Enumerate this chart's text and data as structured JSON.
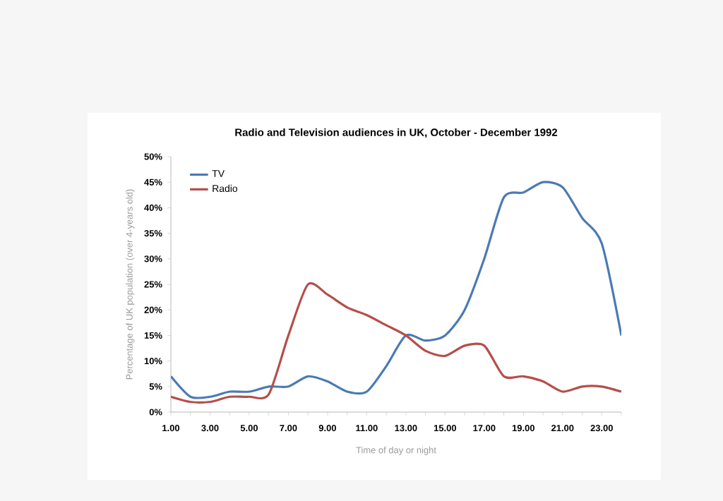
{
  "chart_data": {
    "type": "line",
    "title": "Radio and Television audiences in UK, October - December 1992",
    "xlabel": "Time of day or night",
    "ylabel": "Percentage of UK population (over 4-years old)",
    "categories": [
      "1.00",
      null,
      "3.00",
      null,
      "5.00",
      null,
      "7.00",
      null,
      "9.00",
      null,
      "11.00",
      null,
      "13.00",
      null,
      "15.00",
      null,
      "17.00",
      null,
      "19.00",
      null,
      "21.00",
      null,
      "23.00",
      null
    ],
    "series": [
      {
        "name": "TV",
        "color": "#4a7ab5",
        "values": [
          7,
          3,
          3,
          4,
          4,
          5,
          5,
          7,
          6,
          4,
          4,
          9,
          15,
          14,
          15,
          20,
          30,
          42,
          43,
          45,
          44,
          38,
          33,
          15
        ]
      },
      {
        "name": "Radio",
        "color": "#b54e4a",
        "values": [
          3,
          2,
          2,
          3,
          3,
          3.5,
          15,
          25,
          23,
          20.5,
          19,
          17,
          15,
          12,
          11,
          13,
          13,
          7,
          7,
          6,
          4,
          5,
          5,
          4
        ]
      }
    ],
    "ylim": [
      0,
      50
    ],
    "yticks": [
      {
        "value": 0,
        "label": "0%"
      },
      {
        "value": 5,
        "label": "5%"
      },
      {
        "value": 10,
        "label": "10%"
      },
      {
        "value": 15,
        "label": "15%"
      },
      {
        "value": 20,
        "label": "20%"
      },
      {
        "value": 25,
        "label": "25%"
      },
      {
        "value": 30,
        "label": "30%"
      },
      {
        "value": 35,
        "label": "35%"
      },
      {
        "value": 40,
        "label": "40%"
      },
      {
        "value": 45,
        "label": "45%"
      },
      {
        "value": 50,
        "label": "50%"
      }
    ],
    "legend": "top left",
    "grid": false,
    "marker": "none",
    "line_style": "solid"
  }
}
